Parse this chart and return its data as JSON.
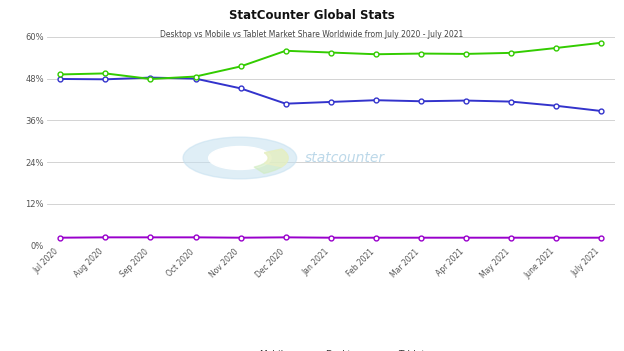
{
  "title": "StatCounter Global Stats",
  "subtitle": "Desktop vs Mobile vs Tablet Market Share Worldwide from July 2020 - July 2021",
  "x_labels": [
    "Jul 2020",
    "Aug 2020",
    "Sep 2020",
    "Oct 2020",
    "Nov 2020",
    "Dec 2020",
    "Jan 2021",
    "Feb 2021",
    "Mar 2021",
    "Apr 2021",
    "May 2021",
    "June 2021",
    "July 2021"
  ],
  "mobile": [
    49.2,
    49.5,
    47.9,
    48.6,
    51.5,
    56.0,
    55.5,
    55.0,
    55.2,
    55.1,
    55.4,
    56.8,
    58.3
  ],
  "desktop": [
    47.9,
    47.8,
    48.3,
    48.0,
    45.2,
    40.8,
    41.3,
    41.8,
    41.5,
    41.7,
    41.4,
    40.2,
    38.7
  ],
  "tablet": [
    2.3,
    2.4,
    2.4,
    2.4,
    2.3,
    2.4,
    2.3,
    2.3,
    2.3,
    2.3,
    2.3,
    2.3,
    2.3
  ],
  "mobile_color": "#33cc00",
  "desktop_color": "#3333cc",
  "tablet_color": "#9900cc",
  "bg_color": "#ffffff",
  "grid_color": "#cccccc",
  "ylim": [
    0,
    60
  ],
  "yticks": [
    0,
    12,
    24,
    36,
    48,
    60
  ],
  "watermark_text": "statcounter",
  "watermark_color_text": "#a0c8e0",
  "watermark_color_circle": "#c5e0f0",
  "watermark_color_green": "#d0ecc0",
  "watermark_color_yellow": "#f0f0c0"
}
